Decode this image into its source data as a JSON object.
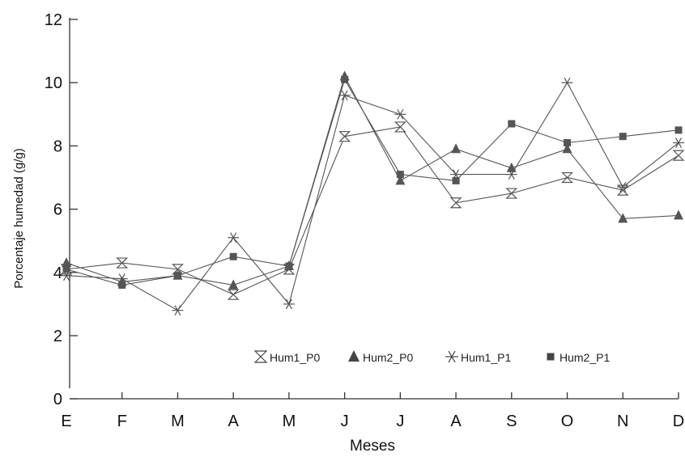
{
  "chart_data": {
    "type": "line",
    "ylabel": "Porcentaje humedad (g/g)",
    "xlabel": "Meses",
    "categories": [
      "E",
      "F",
      "M",
      "A",
      "M",
      "J",
      "J",
      "A",
      "S",
      "O",
      "N",
      "D"
    ],
    "y_ticks": [
      "0",
      "2",
      "4",
      "6",
      "8",
      "10",
      "12"
    ],
    "ylim": [
      0,
      12
    ],
    "grid": false,
    "legend_position": "bottom-center",
    "series": [
      {
        "name": "Hum1_P0",
        "marker": "hourglass",
        "color": "#555555",
        "values": [
          4.1,
          4.3,
          4.1,
          3.3,
          4.1,
          8.3,
          8.6,
          6.2,
          6.5,
          7.0,
          6.6,
          7.7
        ]
      },
      {
        "name": "Hum2_P0",
        "marker": "triangle",
        "color": "#555555",
        "values": [
          4.3,
          3.7,
          3.9,
          3.6,
          4.2,
          10.2,
          6.9,
          7.9,
          7.3,
          7.9,
          5.7,
          5.8
        ]
      },
      {
        "name": "Hum1_P1",
        "marker": "asterisk",
        "color": "#555555",
        "values": [
          3.9,
          3.8,
          2.8,
          5.1,
          3.0,
          9.6,
          9.0,
          7.1,
          7.1,
          10.0,
          6.7,
          8.1
        ]
      },
      {
        "name": "Hum2_P1",
        "marker": "square",
        "color": "#555555",
        "values": [
          4.1,
          3.6,
          3.9,
          4.5,
          4.2,
          10.1,
          7.1,
          6.9,
          8.7,
          8.1,
          8.3,
          8.5
        ]
      }
    ]
  }
}
